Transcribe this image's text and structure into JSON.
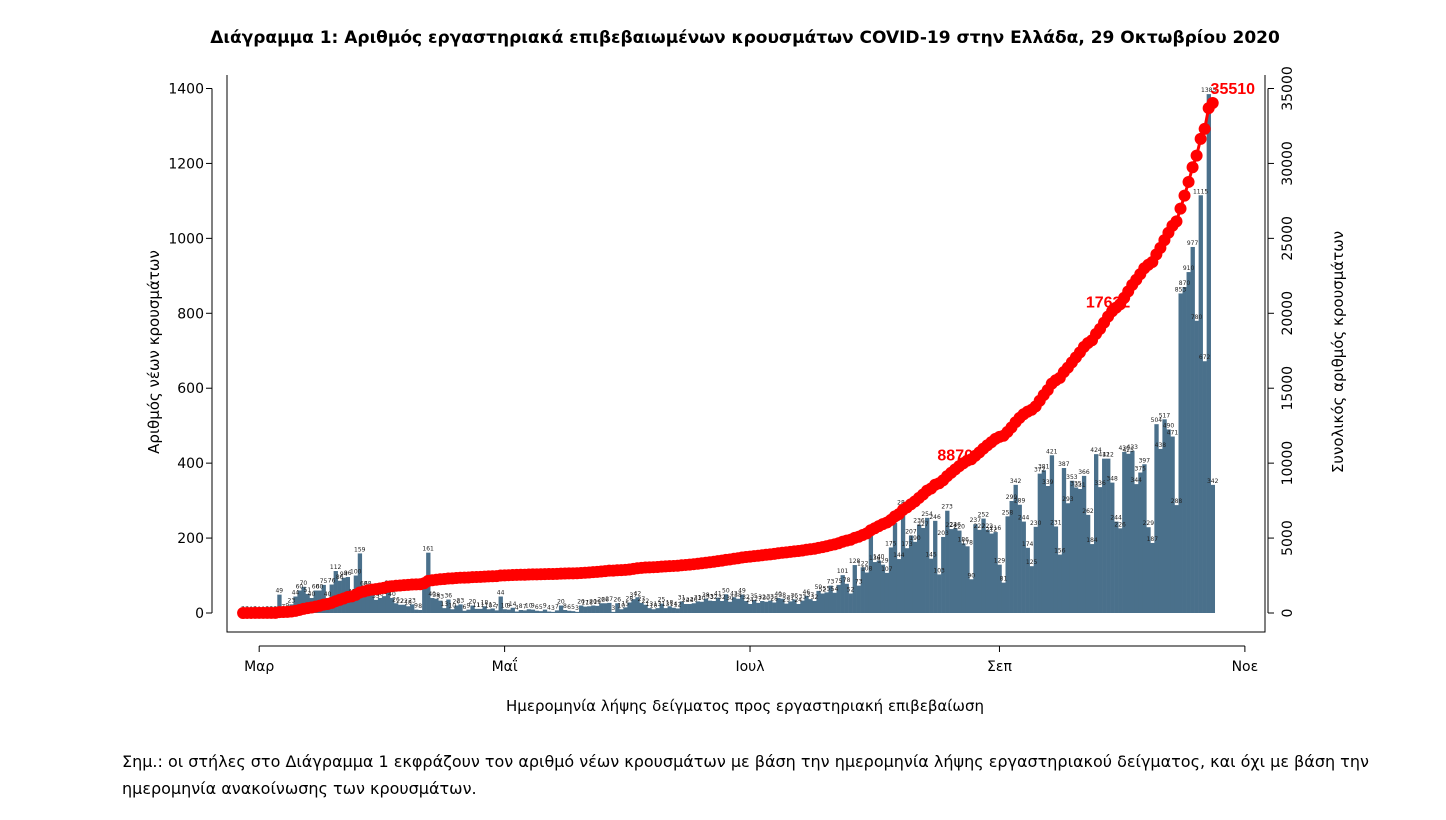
{
  "title": "Διάγραμμα 1: Αριθμός εργαστηριακά επιβεβαιωμένων κρουσμάτων COVID-19 στην Ελλάδα, 29 Οκτωβρίου 2020",
  "note": "Σημ.: οι στήλες στο Διάγραμμα 1 εκφράζουν τον αριθμό νέων κρουσμάτων με βάση την ημερομηνία λήψης εργαστηριακού δείγματος, και όχι με βάση την ημερομηνία ανακοίνωσης των κρουσμάτων.",
  "colors": {
    "bars": "#4a708b",
    "cumulative": "#ff0000"
  },
  "chart_data": {
    "type": "bar+line",
    "xlabel": "Ημερομηνία λήψης δείγματος προς εργαστηριακή επιβεβαίωση",
    "ylabel": "Αριθμός νέων κρουσμάτων",
    "ylabel_right": "Συνολικός αριθμός κρουσμάτων",
    "x_start": "2020-02-26",
    "x_end": "2020-10-29",
    "xlim": [
      "2020-02-22",
      "2020-11-06"
    ],
    "x_ticks": [
      {
        "date": "2020-03-01",
        "label": "Μαρ"
      },
      {
        "date": "2020-05-01",
        "label": "Μαΐ"
      },
      {
        "date": "2020-07-01",
        "label": "Ιουλ"
      },
      {
        "date": "2020-09-01",
        "label": "Σεπ"
      },
      {
        "date": "2020-11-01",
        "label": "Νοε"
      }
    ],
    "ylim_left": [
      0,
      1400
    ],
    "yticks_left": [
      0,
      200,
      400,
      600,
      800,
      1000,
      1200,
      1400
    ],
    "ylim_right": [
      0,
      35000
    ],
    "yticks_right": [
      0,
      5000,
      10000,
      15000,
      20000,
      25000,
      30000,
      35000
    ],
    "daily_cases": [
      2,
      2,
      0,
      2,
      0,
      0,
      2,
      2,
      2,
      49,
      7,
      9,
      23,
      44,
      60,
      70,
      51,
      40,
      60,
      60,
      75,
      40,
      76,
      112,
      86,
      94,
      96,
      47,
      100,
      159,
      68,
      68,
      54,
      35,
      40,
      45,
      69,
      40,
      26,
      22,
      22,
      18,
      23,
      9,
      8,
      65,
      161,
      40,
      38,
      33,
      13,
      36,
      10,
      20,
      23,
      6,
      9,
      20,
      11,
      11,
      18,
      10,
      12,
      7,
      44,
      10,
      9,
      14,
      4,
      8,
      7,
      10,
      9,
      6,
      5,
      9,
      4,
      3,
      7,
      20,
      8,
      6,
      5,
      3,
      20,
      17,
      18,
      20,
      19,
      26,
      26,
      27,
      3,
      26,
      10,
      15,
      28,
      37,
      42,
      27,
      22,
      13,
      10,
      13,
      25,
      13,
      18,
      14,
      12,
      31,
      24,
      24,
      26,
      31,
      30,
      38,
      33,
      32,
      41,
      32,
      50,
      30,
      42,
      38,
      49,
      32,
      24,
      35,
      27,
      32,
      30,
      33,
      28,
      40,
      38,
      25,
      31,
      36,
      24,
      33,
      46,
      37,
      32,
      59,
      52,
      55,
      73,
      54,
      75,
      101,
      78,
      52,
      128,
      73,
      122,
      108,
      206,
      136,
      140,
      129,
      107,
      175,
      241,
      144,
      284,
      173,
      207,
      190,
      236,
      227,
      254,
      145,
      246,
      103,
      203,
      273,
      224,
      226,
      220,
      186,
      178,
      90,
      237,
      222,
      252,
      222,
      212,
      216,
      129,
      81,
      258,
      299,
      342,
      289,
      244,
      174,
      125,
      230,
      372,
      381,
      339,
      421,
      231,
      156,
      387,
      293,
      353,
      335,
      331,
      366,
      262,
      184,
      424,
      336,
      412,
      412,
      348,
      244,
      226,
      430,
      425,
      433,
      344,
      375,
      397,
      229,
      187,
      504,
      438,
      517,
      490,
      471,
      288,
      853,
      870,
      910,
      977,
      780,
      1115,
      672,
      1385,
      342
    ],
    "cum_labels": [
      {
        "date": "2020-08-21",
        "text": "8870"
      },
      {
        "date": "2020-09-28",
        "text": "17632"
      },
      {
        "date": "2020-10-29",
        "text": "35510"
      }
    ]
  }
}
